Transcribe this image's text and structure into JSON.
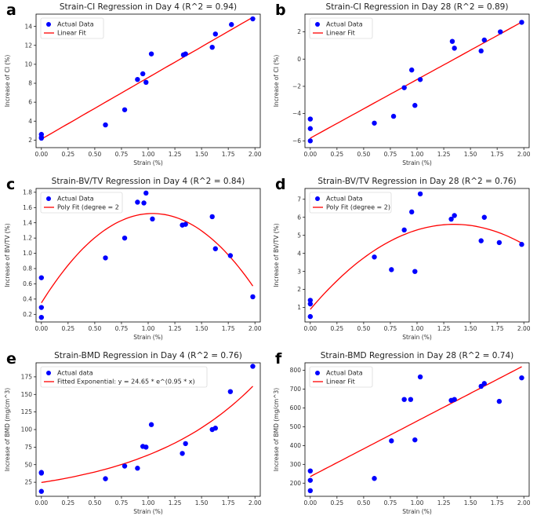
{
  "chart_data": [
    {
      "type": "scatter",
      "panel_label": "a",
      "title": "Strain-CI Regression in Day 4 (R^2 = 0.94)",
      "xlabel": "Strain (%)",
      "ylabel": "Increase of CI (%)",
      "xlim": [
        -0.05,
        2.05
      ],
      "ylim": [
        1.2,
        15.3
      ],
      "xticks": [
        0,
        0.25,
        0.5,
        0.75,
        1.0,
        1.25,
        1.5,
        1.75,
        2.0
      ],
      "xtick_labels": [
        "0.00",
        "0.25",
        "0.50",
        "0.75",
        "1.00",
        "1.25",
        "1.50",
        "1.75",
        "2.00"
      ],
      "yticks": [
        2,
        4,
        6,
        8,
        10,
        12,
        14
      ],
      "ytick_labels": [
        "2",
        "4",
        "6",
        "8",
        "10",
        "12",
        "14"
      ],
      "legend": [
        "Actual Data",
        "Linear Fit"
      ],
      "legend_position": "top-left",
      "x": [
        0.0,
        0.0,
        0.0,
        0.6,
        0.78,
        0.9,
        0.95,
        0.98,
        1.03,
        1.33,
        1.35,
        1.6,
        1.63,
        1.78,
        1.98
      ],
      "y": [
        2.2,
        2.3,
        2.6,
        3.6,
        5.2,
        8.4,
        9.0,
        8.1,
        11.1,
        11.0,
        11.1,
        11.8,
        13.2,
        14.2,
        14.8
      ],
      "fit": {
        "kind": "linear",
        "slope": 6.5,
        "intercept": 2.1
      }
    },
    {
      "type": "scatter",
      "panel_label": "b",
      "title": "Strain-CI Regression in Day 28 (R^2 = 0.89)",
      "xlabel": "Strain (%)",
      "ylabel": "Increase of CI (%)",
      "xlim": [
        -0.05,
        2.05
      ],
      "ylim": [
        -6.5,
        3.3
      ],
      "xticks": [
        0,
        0.25,
        0.5,
        0.75,
        1.0,
        1.25,
        1.5,
        1.75,
        2.0
      ],
      "xtick_labels": [
        "0.00",
        "0.25",
        "0.50",
        "0.75",
        "1.00",
        "1.25",
        "1.50",
        "1.75",
        "2.00"
      ],
      "yticks": [
        -6,
        -4,
        -2,
        0,
        2
      ],
      "ytick_labels": [
        "−6",
        "−4",
        "−2",
        "0",
        "2"
      ],
      "legend": [
        "Actual Data",
        "Linear Fit"
      ],
      "legend_position": "top-left",
      "x": [
        0.0,
        0.0,
        0.0,
        0.6,
        0.78,
        0.88,
        0.95,
        0.98,
        1.03,
        1.33,
        1.35,
        1.6,
        1.63,
        1.78,
        1.98
      ],
      "y": [
        -6.0,
        -5.1,
        -4.4,
        -4.7,
        -4.2,
        -2.1,
        -0.8,
        -3.4,
        -1.5,
        1.3,
        0.8,
        0.6,
        1.4,
        2.0,
        2.7
      ],
      "fit": {
        "kind": "linear",
        "slope": 4.3,
        "intercept": -5.8
      }
    },
    {
      "type": "scatter",
      "panel_label": "c",
      "title": "Strain-BV/TV Regression in Day 4 (R^2 = 0.84)",
      "xlabel": "Strain (%)",
      "ylabel": "Increase of BV/TV (%)",
      "xlim": [
        -0.05,
        2.05
      ],
      "ylim": [
        0.1,
        1.85
      ],
      "xticks": [
        0,
        0.25,
        0.5,
        0.75,
        1.0,
        1.25,
        1.5,
        1.75,
        2.0
      ],
      "xtick_labels": [
        "0.00",
        "0.25",
        "0.50",
        "0.75",
        "1.00",
        "1.25",
        "1.50",
        "1.75",
        "2.00"
      ],
      "yticks": [
        0.2,
        0.4,
        0.6,
        0.8,
        1.0,
        1.2,
        1.4,
        1.6,
        1.8
      ],
      "ytick_labels": [
        "0.2",
        "0.4",
        "0.6",
        "0.8",
        "1.0",
        "1.2",
        "1.4",
        "1.6",
        "1.8"
      ],
      "legend": [
        "Actual Data",
        "Poly Fit (degree = 2"
      ],
      "legend_position": "top-left",
      "x": [
        0.0,
        0.0,
        0.0,
        0.6,
        0.78,
        0.9,
        0.96,
        0.98,
        1.04,
        1.32,
        1.35,
        1.6,
        1.63,
        1.77,
        1.98
      ],
      "y": [
        0.16,
        0.29,
        0.68,
        0.94,
        1.2,
        1.67,
        1.66,
        1.79,
        1.45,
        1.37,
        1.38,
        1.48,
        1.06,
        0.97,
        0.43
      ],
      "fit": {
        "kind": "poly2",
        "coefficients": [
          0.35,
          2.25,
          -1.08
        ]
      }
    },
    {
      "type": "scatter",
      "panel_label": "d",
      "title": "Strain-BV/TV Regression in Day 28 (R^2 = 0.76)",
      "xlabel": "Strain (%)",
      "ylabel": "Increase of BV/TV (%)",
      "xlim": [
        -0.05,
        2.05
      ],
      "ylim": [
        0.2,
        7.6
      ],
      "xticks": [
        0,
        0.25,
        0.5,
        0.75,
        1.0,
        1.25,
        1.5,
        1.75,
        2.0
      ],
      "xtick_labels": [
        "0.00",
        "0.25",
        "0.50",
        "0.75",
        "1.00",
        "1.25",
        "1.50",
        "1.75",
        "2.00"
      ],
      "yticks": [
        1,
        2,
        3,
        4,
        5,
        6,
        7
      ],
      "ytick_labels": [
        "1",
        "2",
        "3",
        "4",
        "5",
        "6",
        "7"
      ],
      "legend": [
        "Actual Data",
        "Poly Fit (degree = 2)"
      ],
      "legend_position": "top-left",
      "x": [
        0.0,
        0.0,
        0.0,
        0.6,
        0.76,
        0.88,
        0.95,
        0.98,
        1.03,
        1.32,
        1.35,
        1.6,
        1.63,
        1.77,
        1.98
      ],
      "y": [
        0.5,
        1.2,
        1.4,
        3.8,
        3.1,
        5.3,
        6.3,
        3.0,
        7.3,
        5.9,
        6.1,
        4.7,
        6.0,
        4.6,
        4.5
      ],
      "fit": {
        "kind": "poly2",
        "coefficients": [
          0.9,
          7.0,
          -2.6
        ]
      }
    },
    {
      "type": "scatter",
      "panel_label": "e",
      "title": "Strain-BMD Regression in Day 4 (R^2 = 0.76)",
      "xlabel": "Strain (%)",
      "ylabel": "Increase of BMD (mg/cm^3)",
      "xlim": [
        -0.05,
        2.05
      ],
      "ylim": [
        5,
        195
      ],
      "xticks": [
        0,
        0.25,
        0.5,
        0.75,
        1.0,
        1.25,
        1.5,
        1.75,
        2.0
      ],
      "xtick_labels": [
        "0.00",
        "0.25",
        "0.50",
        "0.75",
        "1.00",
        "1.25",
        "1.50",
        "1.75",
        "2.00"
      ],
      "yticks": [
        25,
        50,
        75,
        100,
        125,
        150,
        175
      ],
      "ytick_labels": [
        "25",
        "50",
        "75",
        "100",
        "125",
        "150",
        "175"
      ],
      "legend": [
        "Actual data",
        "Fitted Exponential: y = 24.65 * e^(0.95 * x)"
      ],
      "legend_position": "top-left",
      "x": [
        0.0,
        0.0,
        0.0,
        0.6,
        0.78,
        0.9,
        0.95,
        0.98,
        1.03,
        1.32,
        1.35,
        1.6,
        1.63,
        1.77,
        1.98
      ],
      "y": [
        12,
        38,
        39,
        30,
        48,
        45,
        76,
        75,
        107,
        66,
        80,
        100,
        102,
        154,
        190
      ],
      "fit": {
        "kind": "exponential",
        "a": 24.65,
        "b": 0.95
      }
    },
    {
      "type": "scatter",
      "panel_label": "f",
      "title": "Strain-BMD Regression in Day 28 (R^2 = 0.74)",
      "xlabel": "Strain (%)",
      "ylabel": "Increase of BMD (mg/cm^3)",
      "xlim": [
        -0.05,
        2.05
      ],
      "ylim": [
        130,
        840
      ],
      "xticks": [
        0,
        0.25,
        0.5,
        0.75,
        1.0,
        1.25,
        1.5,
        1.75,
        2.0
      ],
      "xtick_labels": [
        "0.00",
        "0.25",
        "0.50",
        "0.75",
        "1.00",
        "1.25",
        "1.50",
        "1.75",
        "2.00"
      ],
      "yticks": [
        200,
        300,
        400,
        500,
        600,
        700,
        800
      ],
      "ytick_labels": [
        "200",
        "300",
        "400",
        "500",
        "600",
        "700",
        "800"
      ],
      "legend": [
        "Actual Data",
        "Linear Fit"
      ],
      "legend_position": "top-left",
      "x": [
        0.0,
        0.0,
        0.0,
        0.6,
        0.76,
        0.88,
        0.94,
        0.98,
        1.03,
        1.32,
        1.35,
        1.6,
        1.63,
        1.77,
        1.98
      ],
      "y": [
        160,
        215,
        265,
        225,
        425,
        645,
        645,
        430,
        765,
        640,
        645,
        715,
        730,
        635,
        760
      ],
      "fit": {
        "kind": "linear",
        "slope": 295,
        "intercept": 235
      }
    }
  ],
  "colors": {
    "data_points": "#0000ff",
    "fit_line": "#ff0000",
    "axes": "#000000"
  }
}
